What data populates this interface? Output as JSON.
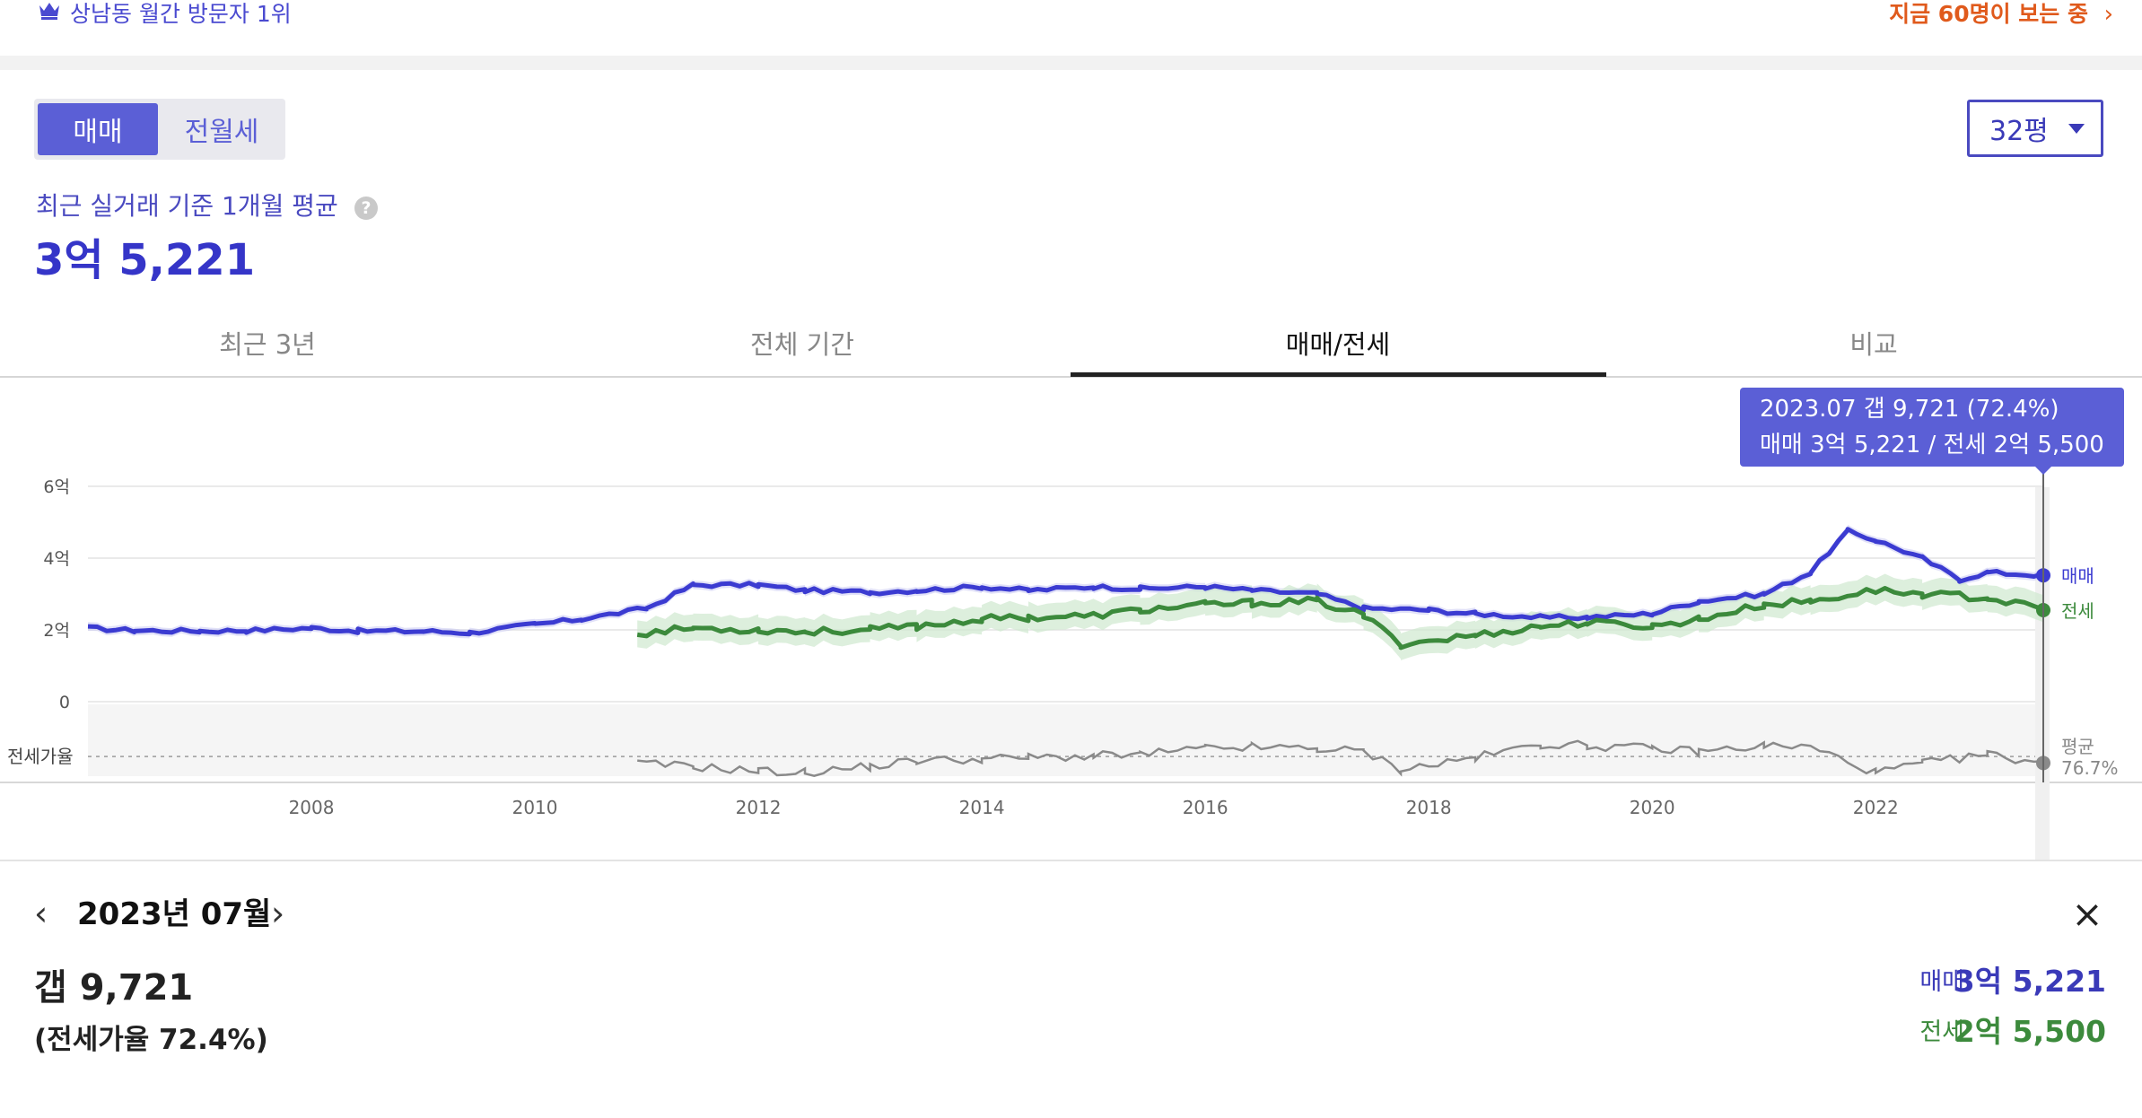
{
  "top": {
    "visitor_rank": "상남동 월간 방문자 1위",
    "viewing_now": "지금 60명이 보는 중",
    "viewing_arrow": "›"
  },
  "trade_tabs": [
    {
      "label": "매매",
      "selected": true
    },
    {
      "label": "전월세",
      "selected": false
    }
  ],
  "area_select": {
    "value": "32평"
  },
  "basis_text": "최근 실거래 기준 1개월 평균",
  "help_icon": "?",
  "main_price": "3억 5,221",
  "period_tabs": [
    {
      "label": "최근 3년",
      "selected": false
    },
    {
      "label": "전체 기간",
      "selected": false
    },
    {
      "label": "매매/전세",
      "selected": true
    },
    {
      "label": "비교",
      "selected": false
    }
  ],
  "tooltip": {
    "line1": "2023.07  갭 9,721 (72.4%)",
    "line2": "매매 3억 5,221 / 전세 2억 5,500"
  },
  "chart_data": {
    "type": "line",
    "x_start": "2006.01",
    "x_end": "2023.07",
    "x_ticks": [
      "2008",
      "2010",
      "2012",
      "2014",
      "2016",
      "2018",
      "2020",
      "2022"
    ],
    "y_ticks": [
      "0",
      "2억",
      "4억",
      "6억"
    ],
    "ylim": [
      0,
      6.0
    ],
    "y_unit": "억",
    "series": [
      {
        "name": "매매",
        "color": "#3b3bd1",
        "end_value": 3.52,
        "points": [
          [
            "2006.01",
            2.05
          ],
          [
            "2006.06",
            1.98
          ],
          [
            "2007.01",
            1.97
          ],
          [
            "2007.06",
            1.98
          ],
          [
            "2008.01",
            2.05
          ],
          [
            "2008.06",
            1.97
          ],
          [
            "2009.01",
            1.96
          ],
          [
            "2009.06",
            1.92
          ],
          [
            "2010.01",
            2.15
          ],
          [
            "2010.06",
            2.3
          ],
          [
            "2011.01",
            2.6
          ],
          [
            "2011.06",
            3.25
          ],
          [
            "2012.01",
            3.25
          ],
          [
            "2012.06",
            3.1
          ],
          [
            "2013.01",
            3.05
          ],
          [
            "2013.06",
            3.1
          ],
          [
            "2014.01",
            3.2
          ],
          [
            "2014.06",
            3.1
          ],
          [
            "2015.01",
            3.2
          ],
          [
            "2015.06",
            3.15
          ],
          [
            "2016.01",
            3.2
          ],
          [
            "2016.06",
            3.1
          ],
          [
            "2017.01",
            3.0
          ],
          [
            "2017.06",
            2.6
          ],
          [
            "2018.01",
            2.55
          ],
          [
            "2018.06",
            2.45
          ],
          [
            "2019.01",
            2.35
          ],
          [
            "2019.06",
            2.35
          ],
          [
            "2020.01",
            2.45
          ],
          [
            "2020.06",
            2.8
          ],
          [
            "2021.01",
            3.0
          ],
          [
            "2021.06",
            3.6
          ],
          [
            "2021.10",
            4.75
          ],
          [
            "2022.01",
            4.5
          ],
          [
            "2022.06",
            4.0
          ],
          [
            "2022.10",
            3.4
          ],
          [
            "2023.01",
            3.6
          ],
          [
            "2023.07",
            3.52
          ]
        ]
      },
      {
        "name": "전세",
        "color": "#3c8a3c",
        "end_value": 2.55,
        "points": [
          [
            "2010.12",
            1.9
          ],
          [
            "2011.06",
            2.05
          ],
          [
            "2012.01",
            2.0
          ],
          [
            "2012.06",
            1.95
          ],
          [
            "2013.01",
            2.0
          ],
          [
            "2013.06",
            2.1
          ],
          [
            "2014.01",
            2.3
          ],
          [
            "2014.06",
            2.35
          ],
          [
            "2015.01",
            2.4
          ],
          [
            "2015.06",
            2.55
          ],
          [
            "2016.01",
            2.7
          ],
          [
            "2016.06",
            2.75
          ],
          [
            "2017.01",
            2.8
          ],
          [
            "2017.06",
            2.4
          ],
          [
            "2017.10",
            1.6
          ],
          [
            "2018.06",
            1.85
          ],
          [
            "2019.01",
            2.1
          ],
          [
            "2019.06",
            2.2
          ],
          [
            "2020.01",
            2.1
          ],
          [
            "2020.06",
            2.3
          ],
          [
            "2021.01",
            2.7
          ],
          [
            "2021.06",
            2.8
          ],
          [
            "2022.01",
            3.1
          ],
          [
            "2022.06",
            3.0
          ],
          [
            "2023.01",
            2.9
          ],
          [
            "2023.07",
            2.55
          ]
        ]
      }
    ],
    "ratio": {
      "label": "전세가율",
      "avg_label": "평균",
      "avg_value": "76.7%",
      "color": "#8a8a8a",
      "points": [
        [
          "2010.12",
          72
        ],
        [
          "2011.06",
          70
        ],
        [
          "2012.01",
          67
        ],
        [
          "2012.06",
          66
        ],
        [
          "2013.01",
          70
        ],
        [
          "2013.06",
          74
        ],
        [
          "2014.01",
          75
        ],
        [
          "2014.06",
          76
        ],
        [
          "2015.01",
          77
        ],
        [
          "2015.06",
          78
        ],
        [
          "2016.01",
          82
        ],
        [
          "2016.06",
          83
        ],
        [
          "2017.01",
          82
        ],
        [
          "2017.06",
          80
        ],
        [
          "2017.10",
          68
        ],
        [
          "2018.06",
          76
        ],
        [
          "2019.01",
          85
        ],
        [
          "2019.06",
          84
        ],
        [
          "2020.01",
          82
        ],
        [
          "2020.06",
          80
        ],
        [
          "2021.01",
          84
        ],
        [
          "2021.06",
          83
        ],
        [
          "2022.01",
          66
        ],
        [
          "2022.06",
          72
        ],
        [
          "2023.01",
          78
        ],
        [
          "2023.07",
          72.4
        ]
      ]
    }
  },
  "detail": {
    "prev_arrow": "‹",
    "next_arrow": "›",
    "month": "2023년 07월",
    "close": "×",
    "gap": "갭 9,721",
    "ratio": "(전세가율 72.4%)",
    "buy_label": "매매",
    "buy_value": "3억 5,221",
    "jeonse_label": "전세",
    "jeonse_value": "2억 5,500"
  }
}
